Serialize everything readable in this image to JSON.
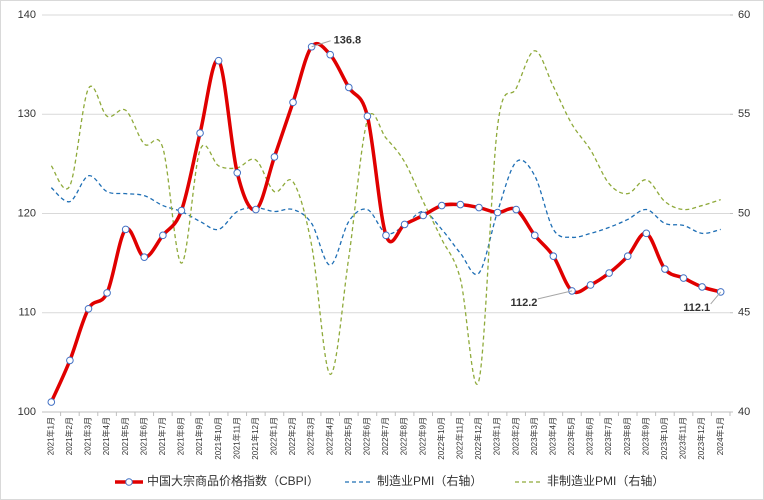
{
  "chart_data": {
    "type": "line",
    "categories": [
      "2021年1月",
      "2021年2月",
      "2021年3月",
      "2021年4月",
      "2021年5月",
      "2021年6月",
      "2021年7月",
      "2021年8月",
      "2021年9月",
      "2021年10月",
      "2021年11月",
      "2021年12月",
      "2022年1月",
      "2022年2月",
      "2022年3月",
      "2022年4月",
      "2022年5月",
      "2022年6月",
      "2022年7月",
      "2022年8月",
      "2022年9月",
      "2022年10月",
      "2022年11月",
      "2022年12月",
      "2023年1月",
      "2023年2月",
      "2023年3月",
      "2023年4月",
      "2023年5月",
      "2023年6月",
      "2023年7月",
      "2023年8月",
      "2023年9月",
      "2023年10月",
      "2023年11月",
      "2023年12月",
      "2024年1月"
    ],
    "series": [
      {
        "name": "中国大宗商品价格指数（CBPI）",
        "color": "#e00000",
        "values": [
          101,
          105.2,
          110.4,
          112,
          118.4,
          115.6,
          117.8,
          120.3,
          128.1,
          135.4,
          124.1,
          120.4,
          125.7,
          131.2,
          136.8,
          136.0,
          132.7,
          129.8,
          117.8,
          118.9,
          119.8,
          120.8,
          120.9,
          120.6,
          120.1,
          120.4,
          117.8,
          115.7,
          112.2,
          112.8,
          114.0,
          115.7,
          118.0,
          114.4,
          113.5,
          112.6,
          112.1
        ],
        "value_labels": [
          null,
          null,
          null,
          null,
          null,
          null,
          null,
          null,
          null,
          null,
          null,
          null,
          null,
          null,
          "136.8",
          null,
          null,
          null,
          null,
          null,
          null,
          null,
          null,
          null,
          null,
          null,
          null,
          null,
          "112.2",
          null,
          null,
          null,
          null,
          null,
          null,
          null,
          "112.1"
        ]
      },
      {
        "name": "制造业PMI（右轴）",
        "color": "#1f6fb5",
        "axis": "y2",
        "values": [
          51.3,
          50.6,
          51.9,
          51.1,
          51.0,
          50.9,
          50.4,
          50.1,
          49.6,
          49.2,
          50.1,
          50.3,
          50.1,
          50.2,
          49.5,
          47.4,
          49.6,
          50.2,
          49.0,
          49.4,
          50.1,
          49.2,
          48.0,
          47.0,
          50.1,
          52.6,
          51.9,
          49.2,
          48.8,
          49.0,
          49.3,
          49.7,
          50.2,
          49.5,
          49.4,
          49.0,
          49.2
        ]
      },
      {
        "name": "非制造业PMI（右轴）",
        "color": "#8faa3b",
        "axis": "y2",
        "values": [
          52.4,
          51.4,
          56.3,
          54.9,
          55.2,
          53.5,
          53.3,
          47.5,
          53.2,
          52.4,
          52.3,
          52.7,
          51.1,
          51.6,
          48.4,
          41.9,
          47.8,
          54.7,
          53.8,
          52.6,
          50.6,
          48.7,
          46.7,
          41.6,
          54.4,
          56.3,
          58.2,
          56.4,
          54.5,
          53.2,
          51.5,
          51.0,
          51.7,
          50.6,
          50.2,
          50.4,
          50.7
        ]
      }
    ],
    "ylim": [
      100,
      140
    ],
    "yticks": [
      100,
      110,
      120,
      130,
      140
    ],
    "y2lim": [
      40,
      60
    ],
    "y2ticks": [
      40,
      45,
      50,
      55,
      60
    ],
    "grid": true,
    "legend": "bottom"
  }
}
